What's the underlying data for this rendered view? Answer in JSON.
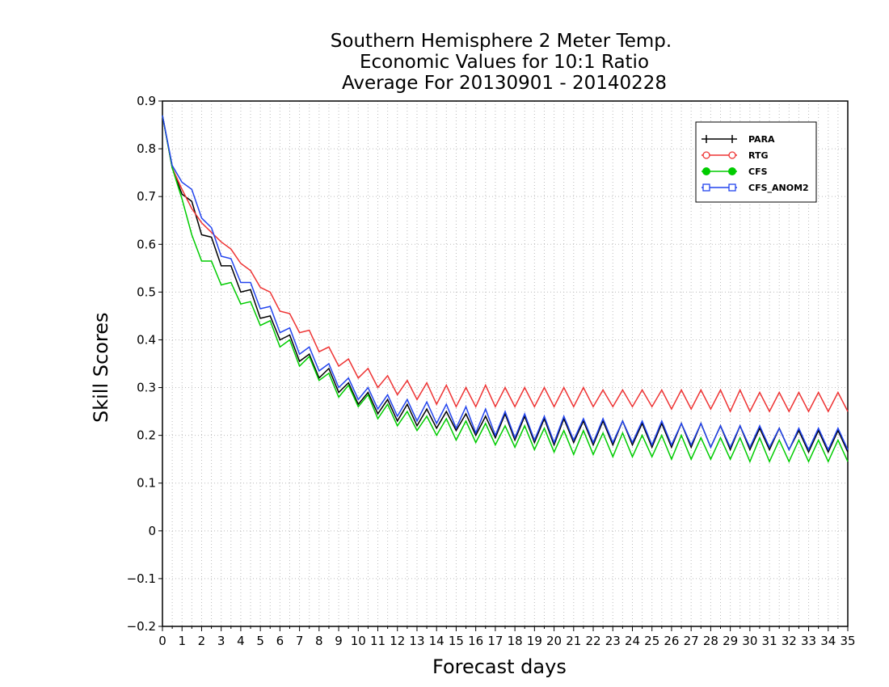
{
  "chart_data": {
    "type": "line",
    "title": [
      "Southern Hemisphere 2 Meter Temp.",
      "Economic Values for 10:1 Ratio",
      "Average For 20130901 - 20140228"
    ],
    "xlabel": "Forecast days",
    "ylabel": "Skill Scores",
    "xlim": [
      0,
      35
    ],
    "ylim": [
      -0.2,
      0.9
    ],
    "x_ticks": [
      0,
      1,
      2,
      3,
      4,
      5,
      6,
      7,
      8,
      9,
      10,
      11,
      12,
      13,
      14,
      15,
      16,
      17,
      18,
      19,
      20,
      21,
      22,
      23,
      24,
      25,
      26,
      27,
      28,
      29,
      30,
      31,
      32,
      33,
      34,
      35
    ],
    "y_ticks": [
      -0.2,
      -0.1,
      0,
      0.1,
      0.2,
      0.3,
      0.4,
      0.5,
      0.6,
      0.7,
      0.8,
      0.9
    ],
    "y_tick_labels": [
      "−0.2",
      "−0.1",
      "0",
      "0.1",
      "0.2",
      "0.3",
      "0.4",
      "0.5",
      "0.6",
      "0.7",
      "0.8",
      "0.9"
    ],
    "grid": true,
    "legend_position": "top-right",
    "x": [
      0,
      0.5,
      1,
      1.5,
      2,
      2.5,
      3,
      3.5,
      4,
      4.5,
      5,
      5.5,
      6,
      6.5,
      7,
      7.5,
      8,
      8.5,
      9,
      9.5,
      10,
      10.5,
      11,
      11.5,
      12,
      12.5,
      13,
      13.5,
      14,
      14.5,
      15,
      15.5,
      16,
      16.5,
      17,
      17.5,
      18,
      18.5,
      19,
      19.5,
      20,
      20.5,
      21,
      21.5,
      22,
      22.5,
      23,
      23.5,
      24,
      24.5,
      25,
      25.5,
      26,
      26.5,
      27,
      27.5,
      28,
      28.5,
      29,
      29.5,
      30,
      30.5,
      31,
      31.5,
      32,
      32.5,
      33,
      33.5,
      34,
      34.5,
      35
    ],
    "series": [
      {
        "name": "PARA",
        "color": "#000000",
        "marker": "plus",
        "values": [
          0.87,
          0.76,
          0.705,
          0.69,
          0.62,
          0.615,
          0.555,
          0.555,
          0.5,
          0.505,
          0.445,
          0.45,
          0.4,
          0.41,
          0.355,
          0.37,
          0.32,
          0.34,
          0.29,
          0.31,
          0.265,
          0.29,
          0.245,
          0.275,
          0.23,
          0.265,
          0.22,
          0.255,
          0.215,
          0.25,
          0.21,
          0.245,
          0.2,
          0.24,
          0.195,
          0.245,
          0.19,
          0.24,
          0.185,
          0.235,
          0.18,
          0.235,
          0.185,
          0.23,
          0.18,
          0.23,
          0.18,
          0.23,
          0.18,
          0.225,
          0.175,
          0.225,
          0.175,
          0.225,
          0.175,
          0.225,
          0.175,
          0.22,
          0.17,
          0.22,
          0.17,
          0.215,
          0.17,
          0.215,
          0.17,
          0.21,
          0.165,
          0.21,
          0.165,
          0.21,
          0.165
        ]
      },
      {
        "name": "RTG",
        "color": "#ee3333",
        "marker": "open-circle",
        "values": [
          0.87,
          0.76,
          0.715,
          0.675,
          0.645,
          0.625,
          0.605,
          0.59,
          0.56,
          0.545,
          0.51,
          0.5,
          0.46,
          0.455,
          0.415,
          0.42,
          0.375,
          0.385,
          0.345,
          0.36,
          0.32,
          0.34,
          0.3,
          0.325,
          0.285,
          0.315,
          0.275,
          0.31,
          0.265,
          0.305,
          0.26,
          0.3,
          0.26,
          0.305,
          0.26,
          0.3,
          0.26,
          0.3,
          0.26,
          0.3,
          0.26,
          0.3,
          0.26,
          0.3,
          0.26,
          0.295,
          0.26,
          0.295,
          0.26,
          0.295,
          0.26,
          0.295,
          0.255,
          0.295,
          0.255,
          0.295,
          0.255,
          0.295,
          0.25,
          0.295,
          0.25,
          0.29,
          0.25,
          0.29,
          0.25,
          0.29,
          0.25,
          0.29,
          0.25,
          0.29,
          0.25
        ]
      },
      {
        "name": "CFS",
        "color": "#00cc00",
        "marker": "filled-circle",
        "values": [
          0.87,
          0.76,
          0.695,
          0.62,
          0.565,
          0.565,
          0.515,
          0.52,
          0.475,
          0.48,
          0.43,
          0.44,
          0.385,
          0.4,
          0.345,
          0.365,
          0.315,
          0.33,
          0.28,
          0.305,
          0.26,
          0.285,
          0.235,
          0.265,
          0.22,
          0.25,
          0.21,
          0.24,
          0.2,
          0.235,
          0.19,
          0.23,
          0.185,
          0.225,
          0.18,
          0.22,
          0.175,
          0.22,
          0.17,
          0.215,
          0.165,
          0.21,
          0.16,
          0.21,
          0.16,
          0.205,
          0.155,
          0.205,
          0.155,
          0.2,
          0.155,
          0.2,
          0.15,
          0.2,
          0.15,
          0.195,
          0.15,
          0.195,
          0.15,
          0.195,
          0.145,
          0.195,
          0.145,
          0.19,
          0.145,
          0.19,
          0.145,
          0.19,
          0.145,
          0.19,
          0.145
        ]
      },
      {
        "name": "CFS_ANOM2",
        "color": "#2244ee",
        "marker": "open-square",
        "values": [
          0.87,
          0.765,
          0.73,
          0.715,
          0.655,
          0.635,
          0.575,
          0.57,
          0.52,
          0.52,
          0.465,
          0.47,
          0.415,
          0.425,
          0.37,
          0.385,
          0.335,
          0.35,
          0.3,
          0.32,
          0.275,
          0.3,
          0.255,
          0.285,
          0.24,
          0.275,
          0.23,
          0.27,
          0.225,
          0.265,
          0.215,
          0.26,
          0.205,
          0.255,
          0.2,
          0.25,
          0.195,
          0.245,
          0.19,
          0.24,
          0.185,
          0.24,
          0.19,
          0.235,
          0.185,
          0.235,
          0.185,
          0.23,
          0.185,
          0.23,
          0.18,
          0.23,
          0.18,
          0.225,
          0.18,
          0.225,
          0.175,
          0.22,
          0.175,
          0.22,
          0.175,
          0.22,
          0.175,
          0.215,
          0.17,
          0.215,
          0.17,
          0.215,
          0.17,
          0.215,
          0.17
        ]
      }
    ]
  }
}
